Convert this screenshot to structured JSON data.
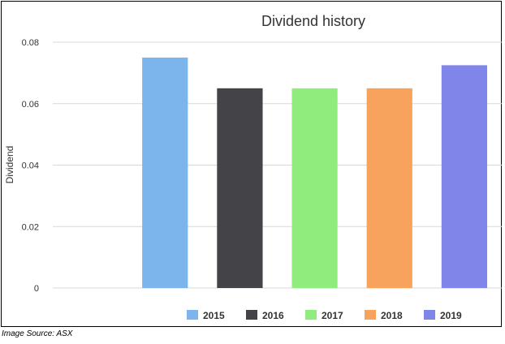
{
  "chart_data": {
    "type": "bar",
    "title": "Dividend history",
    "xlabel": "",
    "ylabel": "Dividend",
    "ylim": [
      0,
      0.08
    ],
    "yticks": [
      "0",
      "0.02",
      "0.04",
      "0.06",
      "0.08"
    ],
    "grid": true,
    "legend_position": "bottom",
    "categories": [
      "2015",
      "2016",
      "2017",
      "2018",
      "2019"
    ],
    "values": [
      0.075,
      0.065,
      0.065,
      0.065,
      0.0725
    ],
    "colors": [
      "#7cb4ec",
      "#434348",
      "#90ed7d",
      "#f7a35c",
      "#8085e9"
    ]
  },
  "caption": "Image Source: ASX"
}
